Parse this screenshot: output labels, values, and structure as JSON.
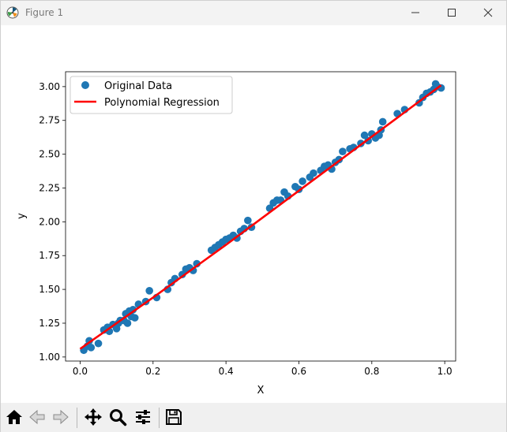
{
  "window": {
    "title": "Figure 1"
  },
  "toolbar": {
    "buttons": [
      {
        "name": "home",
        "icon": "home-icon"
      },
      {
        "name": "back",
        "icon": "arrow-left-icon"
      },
      {
        "name": "forward",
        "icon": "arrow-right-icon"
      },
      {
        "name": "pan",
        "icon": "move-icon"
      },
      {
        "name": "zoom",
        "icon": "magnifier-icon"
      },
      {
        "name": "configure",
        "icon": "sliders-icon"
      },
      {
        "name": "save",
        "icon": "floppy-disk-icon"
      }
    ]
  },
  "chart_data": {
    "type": "scatter",
    "xlabel": "X",
    "ylabel": "y",
    "xlim": [
      -0.04,
      1.03
    ],
    "ylim": [
      0.97,
      3.11
    ],
    "xticks": [
      "0.0",
      "0.2",
      "0.4",
      "0.6",
      "0.8",
      "1.0"
    ],
    "yticks": [
      "1.00",
      "1.25",
      "1.50",
      "1.75",
      "2.00",
      "2.25",
      "2.50",
      "2.75",
      "3.00"
    ],
    "xtick_values": [
      0,
      0.2,
      0.4,
      0.6,
      0.8,
      1.0
    ],
    "ytick_values": [
      1.0,
      1.25,
      1.5,
      1.75,
      2.0,
      2.25,
      2.5,
      2.75,
      3.0
    ],
    "legend": {
      "placement": "upper-left",
      "entries": [
        "Original Data",
        "Polynomial Regression"
      ]
    },
    "colors": {
      "scatter": "#1f77b4",
      "line": "#ff0000"
    },
    "series": [
      {
        "name": "Original Data",
        "type": "scatter",
        "points": [
          [
            0.01,
            1.05
          ],
          [
            0.02,
            1.08
          ],
          [
            0.025,
            1.12
          ],
          [
            0.03,
            1.07
          ],
          [
            0.05,
            1.1
          ],
          [
            0.065,
            1.2
          ],
          [
            0.075,
            1.22
          ],
          [
            0.08,
            1.19
          ],
          [
            0.09,
            1.24
          ],
          [
            0.1,
            1.21
          ],
          [
            0.105,
            1.25
          ],
          [
            0.11,
            1.27
          ],
          [
            0.12,
            1.27
          ],
          [
            0.125,
            1.32
          ],
          [
            0.13,
            1.25
          ],
          [
            0.135,
            1.34
          ],
          [
            0.14,
            1.3
          ],
          [
            0.145,
            1.35
          ],
          [
            0.15,
            1.29
          ],
          [
            0.16,
            1.39
          ],
          [
            0.18,
            1.41
          ],
          [
            0.19,
            1.49
          ],
          [
            0.21,
            1.44
          ],
          [
            0.24,
            1.5
          ],
          [
            0.25,
            1.55
          ],
          [
            0.26,
            1.58
          ],
          [
            0.28,
            1.61
          ],
          [
            0.29,
            1.65
          ],
          [
            0.3,
            1.66
          ],
          [
            0.31,
            1.64
          ],
          [
            0.32,
            1.69
          ],
          [
            0.36,
            1.79
          ],
          [
            0.37,
            1.81
          ],
          [
            0.38,
            1.83
          ],
          [
            0.39,
            1.85
          ],
          [
            0.4,
            1.87
          ],
          [
            0.41,
            1.88
          ],
          [
            0.42,
            1.9
          ],
          [
            0.43,
            1.88
          ],
          [
            0.44,
            1.93
          ],
          [
            0.45,
            1.95
          ],
          [
            0.46,
            2.01
          ],
          [
            0.47,
            1.96
          ],
          [
            0.52,
            2.1
          ],
          [
            0.53,
            2.14
          ],
          [
            0.54,
            2.16
          ],
          [
            0.55,
            2.16
          ],
          [
            0.56,
            2.22
          ],
          [
            0.57,
            2.19
          ],
          [
            0.59,
            2.26
          ],
          [
            0.6,
            2.24
          ],
          [
            0.61,
            2.3
          ],
          [
            0.63,
            2.33
          ],
          [
            0.64,
            2.36
          ],
          [
            0.66,
            2.38
          ],
          [
            0.67,
            2.41
          ],
          [
            0.68,
            2.42
          ],
          [
            0.69,
            2.39
          ],
          [
            0.7,
            2.44
          ],
          [
            0.71,
            2.46
          ],
          [
            0.72,
            2.52
          ],
          [
            0.74,
            2.54
          ],
          [
            0.75,
            2.55
          ],
          [
            0.77,
            2.58
          ],
          [
            0.78,
            2.64
          ],
          [
            0.79,
            2.6
          ],
          [
            0.8,
            2.65
          ],
          [
            0.81,
            2.62
          ],
          [
            0.82,
            2.64
          ],
          [
            0.825,
            2.68
          ],
          [
            0.83,
            2.74
          ],
          [
            0.87,
            2.8
          ],
          [
            0.89,
            2.83
          ],
          [
            0.93,
            2.88
          ],
          [
            0.94,
            2.92
          ],
          [
            0.95,
            2.95
          ],
          [
            0.96,
            2.96
          ],
          [
            0.97,
            2.98
          ],
          [
            0.975,
            3.02
          ],
          [
            0.98,
            3.0
          ],
          [
            0.99,
            2.99
          ]
        ]
      },
      {
        "name": "Polynomial Regression",
        "type": "line",
        "points": [
          [
            0.0,
            1.06
          ],
          [
            0.2,
            1.44
          ],
          [
            0.4,
            1.83
          ],
          [
            0.6,
            2.23
          ],
          [
            0.8,
            2.63
          ],
          [
            0.99,
            3.01
          ]
        ]
      }
    ]
  }
}
